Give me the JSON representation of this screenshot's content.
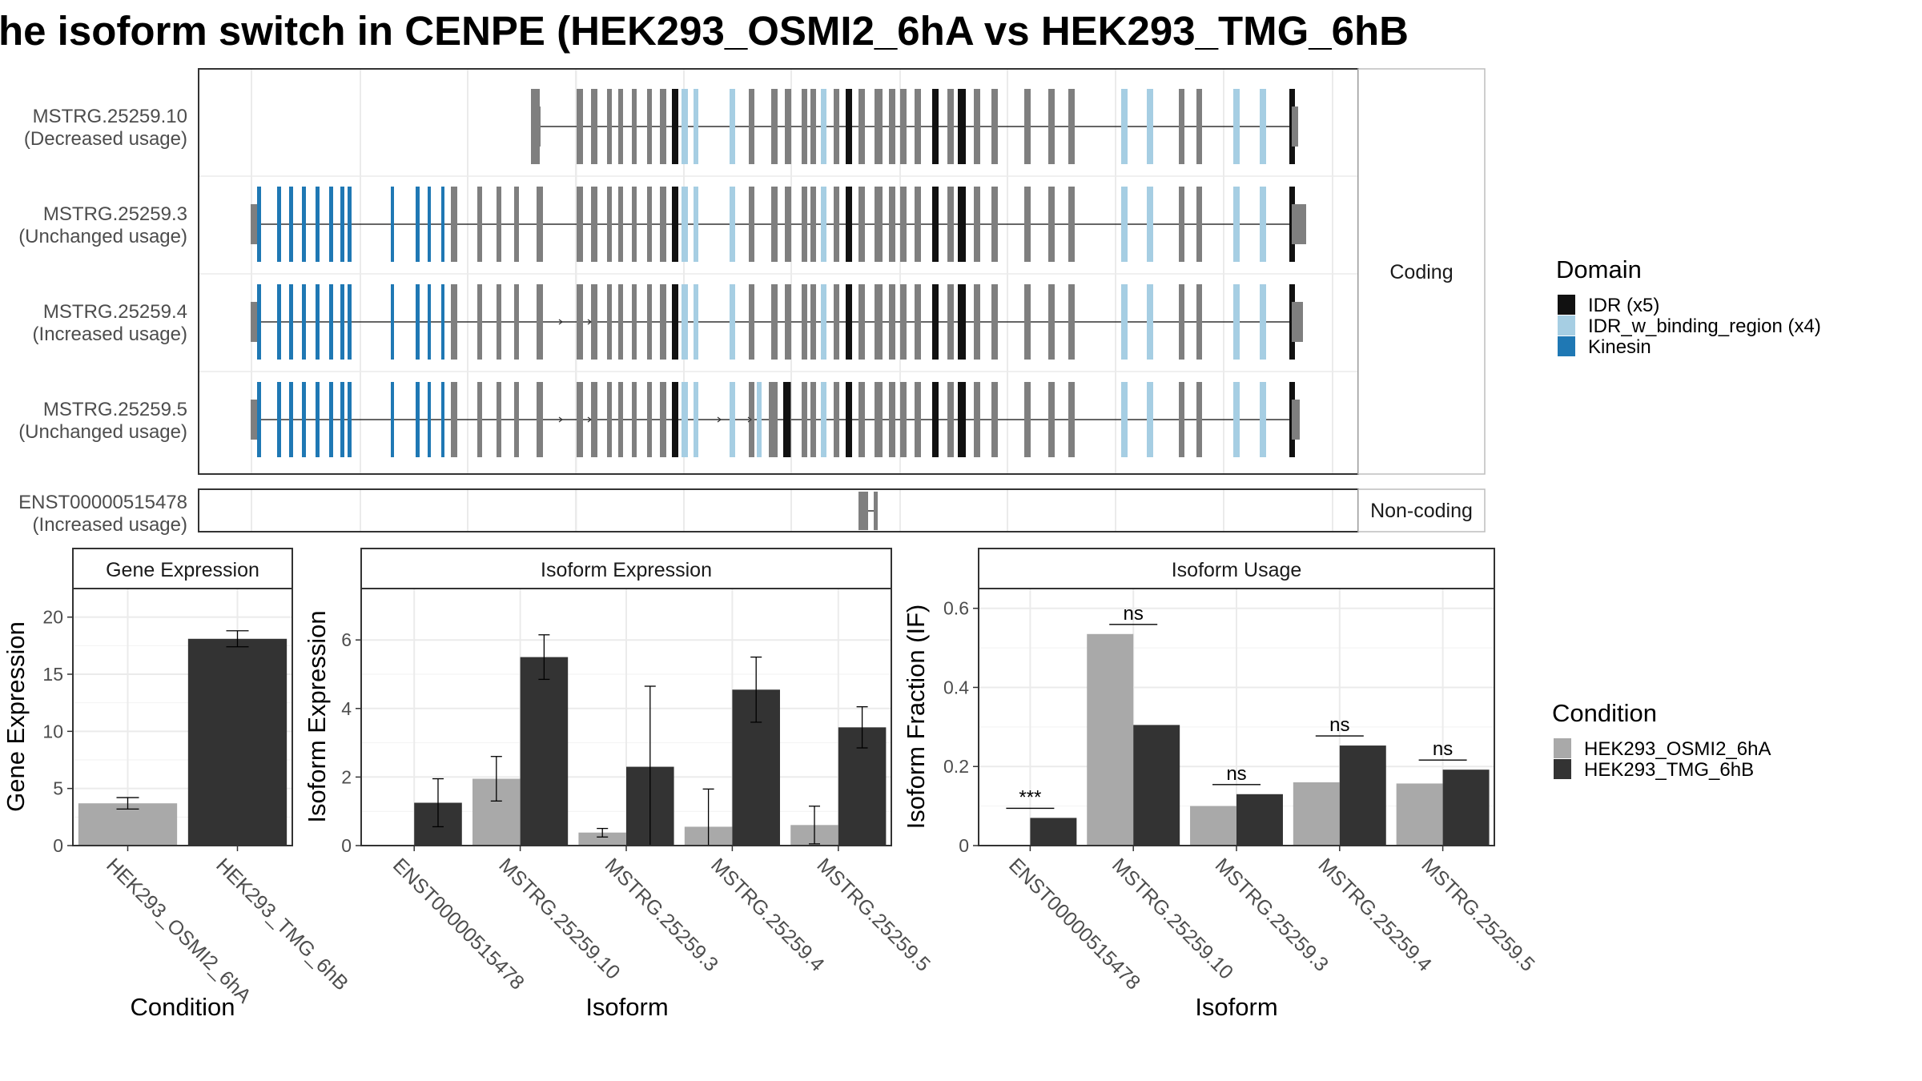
{
  "title": "he isoform switch in CENPE (HEK293_OSMI2_6hA vs HEK293_TMG_6hB",
  "structure": {
    "coding_strip": "Coding",
    "noncoding_strip": "Non-coding",
    "transcripts": [
      {
        "id": "MSTRG.25259.10",
        "usage": "(Decreased usage)"
      },
      {
        "id": "MSTRG.25259.3",
        "usage": "(Unchanged usage)"
      },
      {
        "id": "MSTRG.25259.4",
        "usage": "(Increased usage)"
      },
      {
        "id": "MSTRG.25259.5",
        "usage": "(Unchanged usage)"
      },
      {
        "id": "ENST00000515478",
        "usage": "(Increased usage)"
      }
    ],
    "domain_legend": {
      "title": "Domain",
      "items": [
        {
          "label": "IDR (x5)",
          "color": "#111111"
        },
        {
          "label": "IDR_w_binding_region (x4)",
          "color": "#a6cee3"
        },
        {
          "label": "Kinesin",
          "color": "#1f78b4"
        }
      ]
    }
  },
  "condition_legend": {
    "title": "Condition",
    "items": [
      {
        "label": "HEK293_OSMI2_6hA",
        "color": "#a9a9a9"
      },
      {
        "label": "HEK293_TMG_6hB",
        "color": "#333333"
      }
    ]
  },
  "chart_data": [
    {
      "type": "bar",
      "title": "Gene Expression",
      "xlabel": "Condition",
      "ylabel": "Gene Expression",
      "ylim": [
        0,
        22.5
      ],
      "yticks": [
        0,
        5,
        10,
        15,
        20
      ],
      "categories": [
        "HEK293_OSMI2_6hA",
        "HEK293_TMG_6hB"
      ],
      "values": [
        3.7,
        18.1
      ],
      "errors": [
        [
          3.2,
          4.2
        ],
        [
          17.4,
          18.8
        ]
      ]
    },
    {
      "type": "bar",
      "title": "Isoform Expression",
      "xlabel": "Isoform",
      "ylabel": "Isoform Expression",
      "ylim": [
        0,
        7.5
      ],
      "yticks": [
        0,
        2,
        4,
        6
      ],
      "categories": [
        "ENST00000515478",
        "MSTRG.25259.10",
        "MSTRG.25259.3",
        "MSTRG.25259.4",
        "MSTRG.25259.5"
      ],
      "series": [
        {
          "name": "HEK293_OSMI2_6hA",
          "values": [
            0.0,
            1.95,
            0.38,
            0.55,
            0.6
          ],
          "errors": [
            [
              0.0,
              0.0
            ],
            [
              1.3,
              2.6
            ],
            [
              0.25,
              0.5
            ],
            [
              0.0,
              1.65
            ],
            [
              0.05,
              1.15
            ]
          ]
        },
        {
          "name": "HEK293_TMG_6hB",
          "values": [
            1.25,
            5.5,
            2.3,
            4.55,
            3.45
          ],
          "errors": [
            [
              0.55,
              1.95
            ],
            [
              4.85,
              6.15
            ],
            [
              0.0,
              4.65
            ],
            [
              3.6,
              5.5
            ],
            [
              2.85,
              4.05
            ]
          ]
        }
      ]
    },
    {
      "type": "bar",
      "title": "Isoform Usage",
      "xlabel": "Isoform",
      "ylabel": "Isoform Fraction (IF)",
      "ylim": [
        0,
        0.65
      ],
      "yticks": [
        0.0,
        0.2,
        0.4,
        0.6
      ],
      "categories": [
        "ENST00000515478",
        "MSTRG.25259.10",
        "MSTRG.25259.3",
        "MSTRG.25259.4",
        "MSTRG.25259.5"
      ],
      "series": [
        {
          "name": "HEK293_OSMI2_6hA",
          "values": [
            0.0,
            0.535,
            0.1,
            0.16,
            0.157
          ]
        },
        {
          "name": "HEK293_TMG_6hB",
          "values": [
            0.07,
            0.305,
            0.13,
            0.253,
            0.192
          ]
        }
      ],
      "significance": [
        "***",
        "ns",
        "ns",
        "ns",
        "ns"
      ]
    }
  ]
}
